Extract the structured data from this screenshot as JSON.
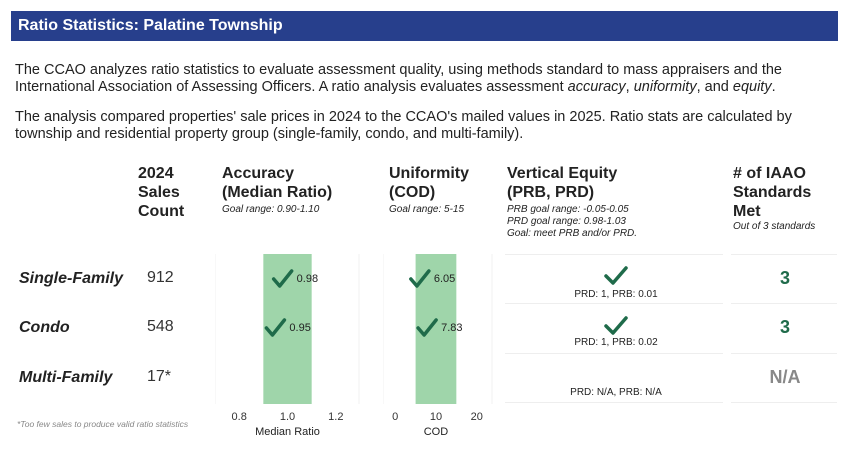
{
  "title": "Ratio Statistics: Palatine Township",
  "intro": {
    "p1_pre": "The CCAO analyzes ratio statistics to evaluate assessment quality, using methods standard to mass appraisers and the International Association of Assessing Officers. A ratio analysis evaluates assessment ",
    "p1_em1": "accuracy",
    "p1_sep1": ", ",
    "p1_em2": "uniformity",
    "p1_sep2": ", and ",
    "p1_em3": "equity",
    "p1_post": ".",
    "p2": "The analysis compared properties' sale prices in 2024 to the CCAO's mailed values in 2025. Ratio stats are calculated by township and residential property group (single-family, condo, and multi-family)."
  },
  "headers": {
    "count": [
      "2024",
      "Sales",
      "Count"
    ],
    "accuracy": [
      "Accuracy",
      "(Median Ratio)"
    ],
    "accuracy_goal": "Goal range: 0.90-1.10",
    "uniformity": [
      "Uniformity",
      "(COD)"
    ],
    "uniformity_goal": "Goal range: 5-15",
    "equity": [
      "Vertical Equity",
      "(PRB, PRD)"
    ],
    "equity_goal": [
      "PRB goal range: -0.05-0.05",
      "PRD goal range: 0.98-1.03",
      "Goal: meet PRB and/or PRD."
    ],
    "standards": [
      "# of IAAO",
      "Standards",
      "Met"
    ],
    "standards_note": "Out of 3 standards"
  },
  "rows": [
    {
      "label": "Single-Family",
      "count": "912",
      "median_ratio": 0.98,
      "median_ratio_label": "0.98",
      "cod": 6.05,
      "cod_label": "6.05",
      "equity": "PRD: 1, PRB: 0.01",
      "equity_check": true,
      "standards": "3"
    },
    {
      "label": "Condo",
      "count": "548",
      "median_ratio": 0.95,
      "median_ratio_label": "0.95",
      "cod": 7.83,
      "cod_label": "7.83",
      "equity": "PRD: 1, PRB: 0.02",
      "equity_check": true,
      "standards": "3"
    },
    {
      "label": "Multi-Family",
      "count": "17*",
      "median_ratio": null,
      "cod": null,
      "equity": "PRD: N/A, PRB: N/A",
      "equity_check": false,
      "standards": "N/A"
    }
  ],
  "chart_data": [
    {
      "type": "scatter",
      "xlabel": "Median Ratio",
      "xlim": [
        0.7,
        1.3
      ],
      "ticks": [
        0.8,
        1.0,
        1.2
      ],
      "tick_labels": [
        "0.8",
        "1.0",
        "1.2"
      ],
      "goal_band": [
        0.9,
        1.1
      ],
      "points": [
        {
          "row": "Single-Family",
          "x": 0.98,
          "label": "0.98"
        },
        {
          "row": "Condo",
          "x": 0.95,
          "label": "0.95"
        }
      ]
    },
    {
      "type": "scatter",
      "xlabel": "COD",
      "xlim": [
        -3,
        24
      ],
      "ticks": [
        0,
        10,
        20
      ],
      "tick_labels": [
        "0",
        "10",
        "20"
      ],
      "goal_band": [
        5,
        15
      ],
      "points": [
        {
          "row": "Single-Family",
          "x": 6.05,
          "label": "6.05"
        },
        {
          "row": "Condo",
          "x": 7.83,
          "label": "7.83"
        }
      ]
    }
  ],
  "colors": {
    "banner": "#273f8c",
    "goal_band": "#9fd5aa",
    "check": "#1f6b4a",
    "na": "#888888"
  },
  "footnote": "*Too few sales to produce valid ratio statistics"
}
